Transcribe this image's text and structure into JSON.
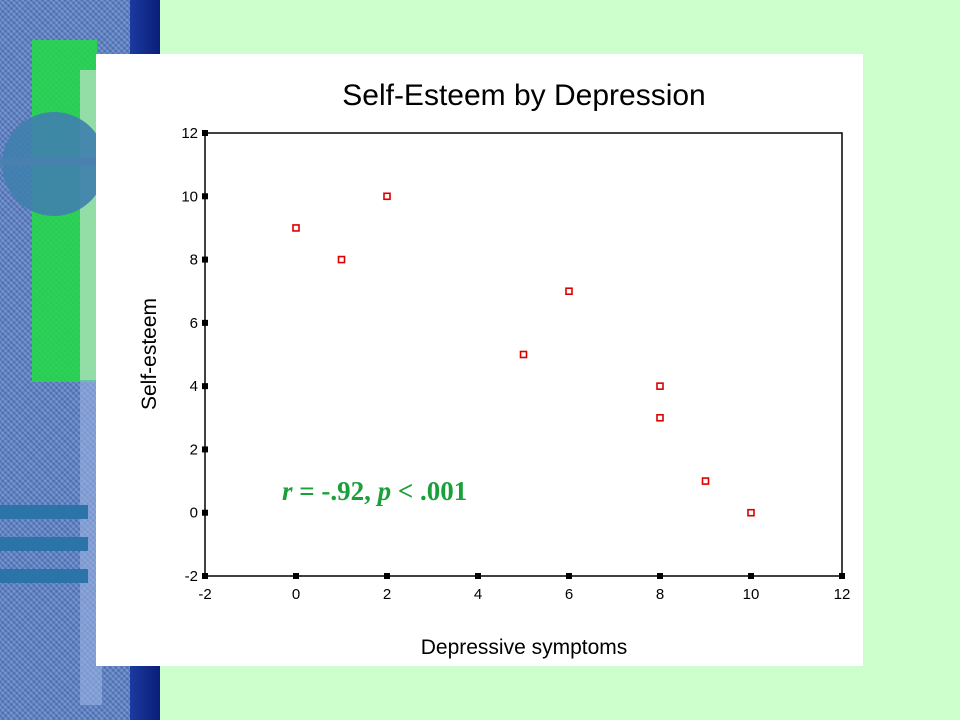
{
  "colors": {
    "slide_background": "#ccffcc",
    "marker": "#dd0000",
    "annotation": "#1aa03a",
    "navy_bar": "#0a1f78"
  },
  "chart_data": {
    "type": "scatter",
    "title": "Self-Esteem by Depression",
    "xlabel": "Depressive symptoms",
    "ylabel": "Self-esteem",
    "xlim": [
      -2,
      12
    ],
    "ylim": [
      -2,
      12
    ],
    "xticks": [
      -2,
      0,
      2,
      4,
      6,
      8,
      10,
      12
    ],
    "yticks": [
      -2,
      0,
      2,
      4,
      6,
      8,
      10,
      12
    ],
    "points": [
      {
        "x": 0,
        "y": 9
      },
      {
        "x": 1,
        "y": 8
      },
      {
        "x": 2,
        "y": 10
      },
      {
        "x": 5,
        "y": 5
      },
      {
        "x": 6,
        "y": 7
      },
      {
        "x": 8,
        "y": 4
      },
      {
        "x": 8,
        "y": 3
      },
      {
        "x": 9,
        "y": 1
      },
      {
        "x": 10,
        "y": 0
      }
    ],
    "annotation": {
      "r_symbol": "r",
      "r_text": " = -.92, ",
      "p_symbol": "p",
      "p_text": " < .001"
    },
    "grid": false,
    "legend": false
  }
}
